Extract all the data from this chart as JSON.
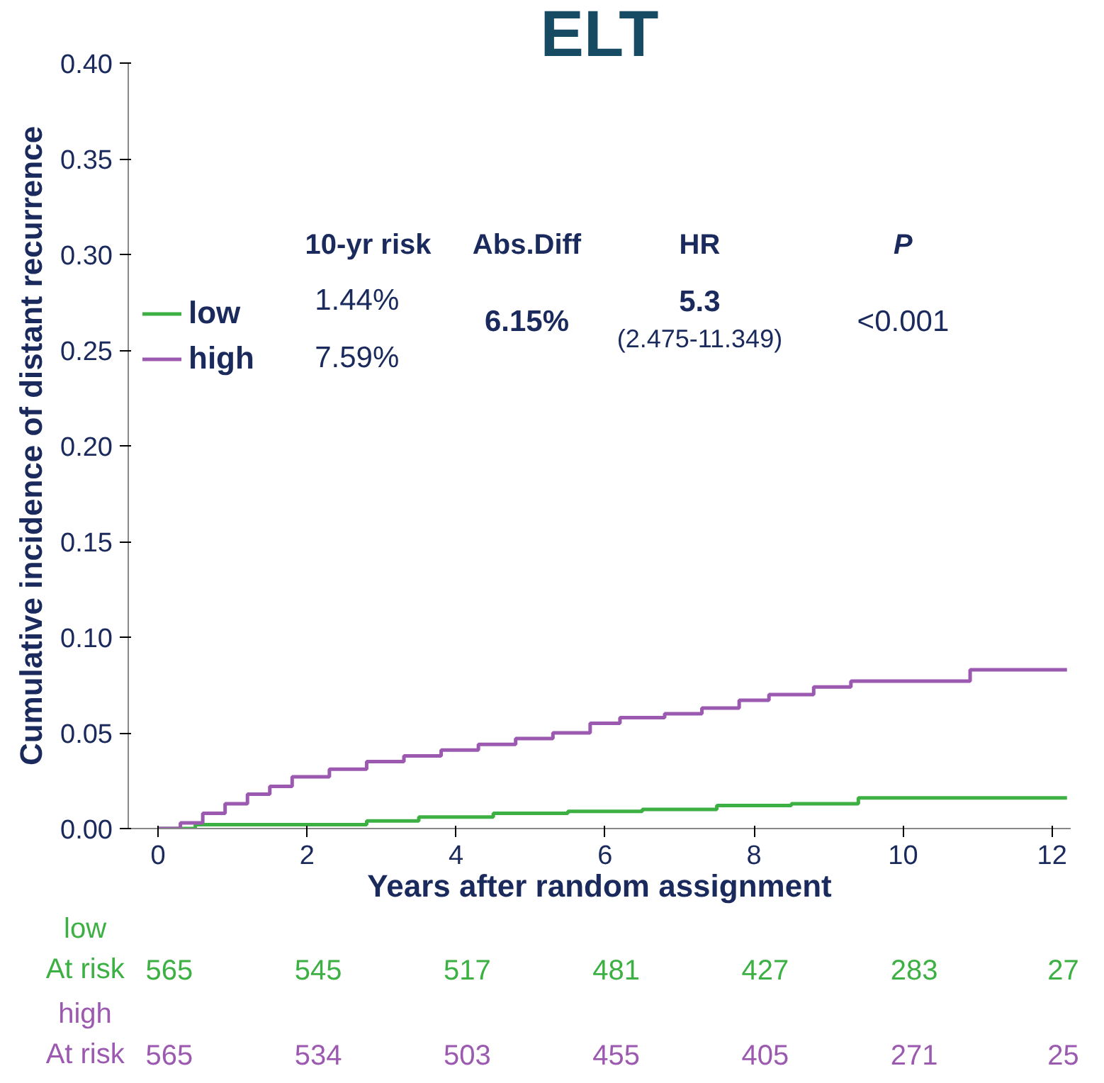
{
  "chart_data": {
    "type": "step",
    "title": "ELT",
    "xlabel": "Years after random assignment",
    "ylabel": "Cumulative incidence of distant recurrence",
    "xlim": [
      -0.4,
      12.25
    ],
    "ylim": [
      0,
      0.4
    ],
    "xticks": [
      0,
      2,
      4,
      6,
      8,
      10,
      12
    ],
    "yticks": [
      {
        "value": 0,
        "label": "0.00"
      },
      {
        "value": 0.05,
        "label": "0.05"
      },
      {
        "value": 0.1,
        "label": "0.10"
      },
      {
        "value": 0.15,
        "label": "0.15"
      },
      {
        "value": 0.2,
        "label": "0.20"
      },
      {
        "value": 0.25,
        "label": "0.25"
      },
      {
        "value": 0.3,
        "label": "0.30"
      },
      {
        "value": 0.35,
        "label": "0.35"
      },
      {
        "value": 0.4,
        "label": "0.40"
      }
    ],
    "grid": false,
    "legend": "top left",
    "marker": "none",
    "series": [
      {
        "name": "low",
        "color": "#3cb043",
        "x": [
          0,
          0.5,
          1.5,
          2.8,
          3.5,
          4.5,
          5.5,
          6.5,
          7.5,
          8.5,
          9.4,
          12.2
        ],
        "values": [
          0,
          0.002,
          0.002,
          0.004,
          0.006,
          0.008,
          0.009,
          0.01,
          0.012,
          0.013,
          0.016,
          0.016
        ]
      },
      {
        "name": "high",
        "color": "#9b59b0",
        "x": [
          0,
          0.3,
          0.6,
          0.9,
          1.2,
          1.5,
          1.8,
          2.3,
          2.8,
          3.3,
          3.8,
          4.3,
          4.8,
          5.3,
          5.8,
          6.2,
          6.8,
          7.3,
          7.8,
          8.2,
          8.8,
          9.3,
          10.9,
          12.2
        ],
        "values": [
          0,
          0.003,
          0.008,
          0.013,
          0.018,
          0.022,
          0.027,
          0.031,
          0.035,
          0.038,
          0.041,
          0.044,
          0.047,
          0.05,
          0.055,
          0.058,
          0.06,
          0.063,
          0.067,
          0.07,
          0.074,
          0.077,
          0.083,
          0.083
        ]
      }
    ],
    "annotations": [
      "10-yr risk",
      "Abs.Diff",
      "HR",
      "P",
      "1.44%",
      "7.59%",
      "6.15%",
      "5.3",
      "(2.475-11.349)",
      "<0.001",
      "low",
      "At risk",
      "565",
      "545",
      "517",
      "481",
      "427",
      "283",
      "27",
      "high",
      "At risk",
      "565",
      "534",
      "503",
      "455",
      "405",
      "271",
      "25"
    ]
  }
}
